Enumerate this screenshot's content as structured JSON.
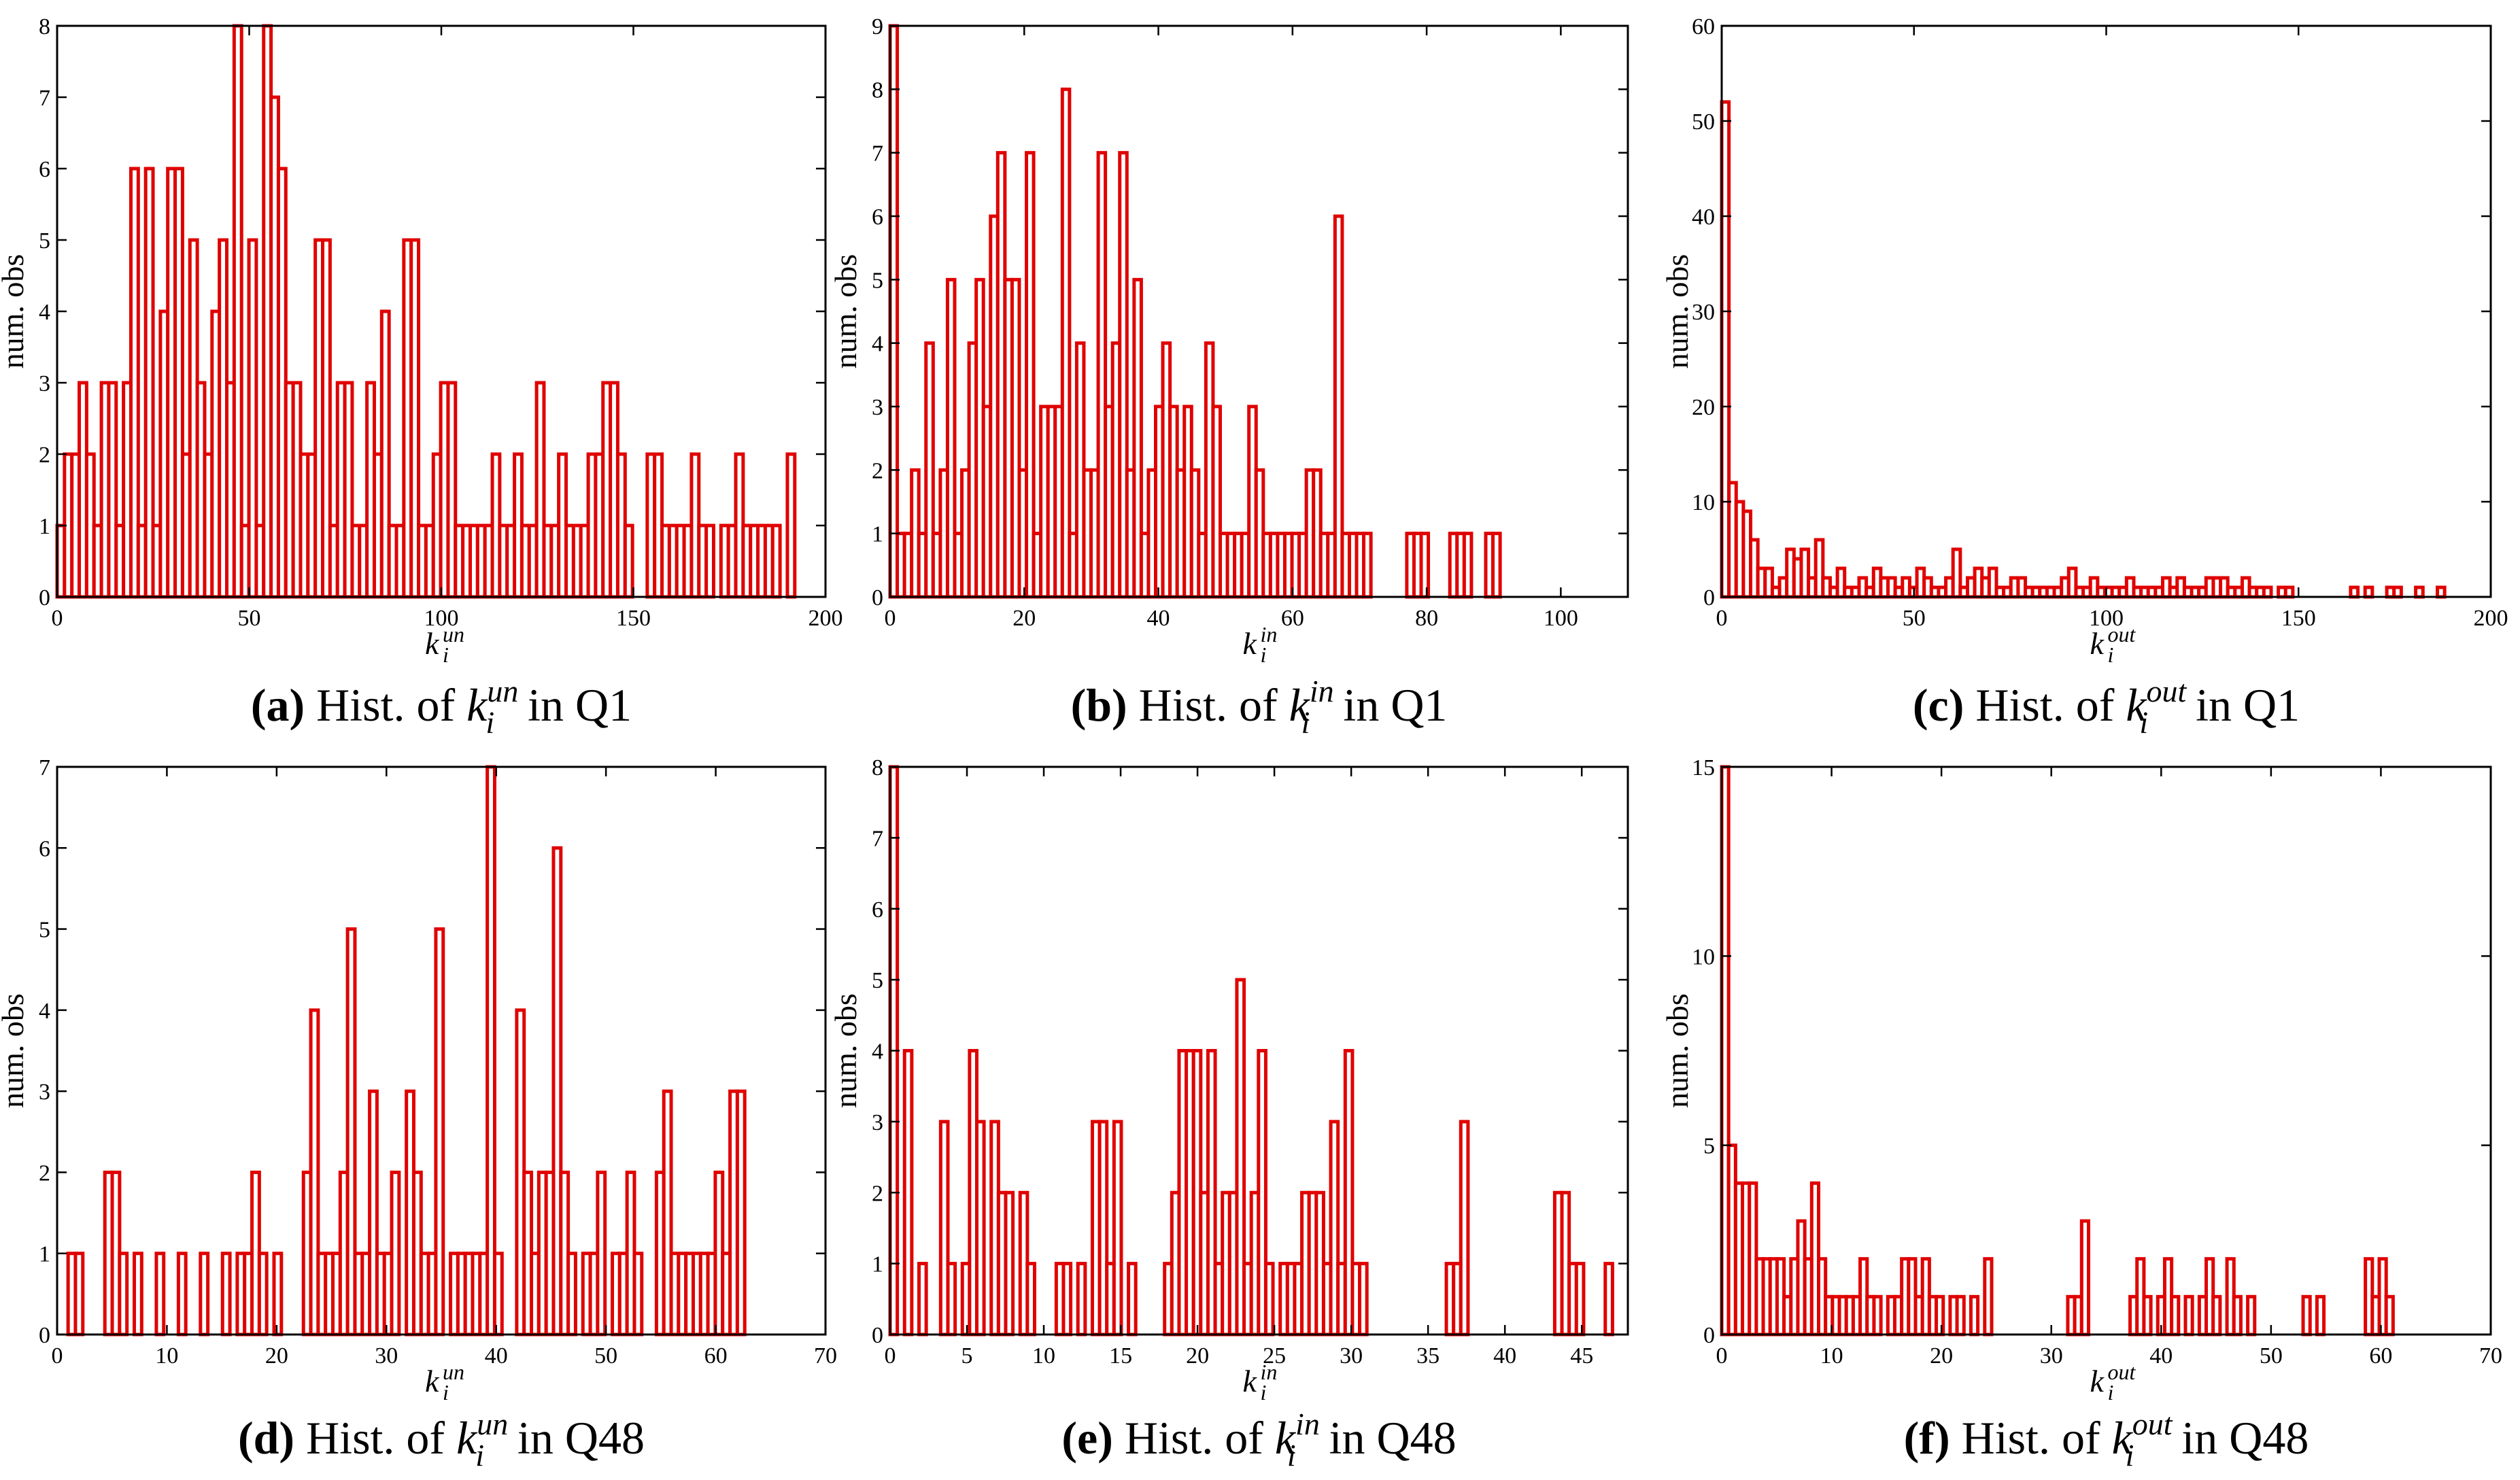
{
  "figure": {
    "colors": {
      "bar_edge": "#e00000",
      "bar_fill": "#ffffff",
      "axes": "#000000"
    }
  },
  "chart_data": [
    {
      "id": "a",
      "type": "bar",
      "caption": {
        "letter": "(a)",
        "prefix": "Hist. of",
        "k": "k",
        "sub": "i",
        "sup": "un",
        "suffix": "in Q1"
      },
      "xlabel": {
        "base": "k",
        "sub": "i",
        "sup": "un"
      },
      "ylabel": "num. obs",
      "xlim": [
        0,
        200
      ],
      "ylim": [
        0,
        8
      ],
      "xticks": [
        0,
        50,
        100,
        150,
        200
      ],
      "yticks": [
        0,
        1,
        2,
        3,
        4,
        5,
        6,
        7,
        8
      ],
      "bin_start": 0,
      "bin_width": 1.92,
      "values": [
        1,
        2,
        2,
        3,
        2,
        1,
        3,
        3,
        1,
        3,
        6,
        1,
        6,
        1,
        4,
        6,
        6,
        2,
        5,
        3,
        2,
        4,
        5,
        3,
        8,
        1,
        5,
        1,
        8,
        7,
        6,
        3,
        3,
        2,
        2,
        5,
        5,
        1,
        3,
        3,
        1,
        1,
        3,
        2,
        4,
        1,
        1,
        5,
        5,
        1,
        1,
        2,
        3,
        3,
        1,
        1,
        1,
        1,
        1,
        2,
        1,
        1,
        2,
        1,
        1,
        3,
        1,
        1,
        2,
        1,
        1,
        1,
        2,
        2,
        3,
        3,
        2,
        1,
        0,
        0,
        2,
        2,
        1,
        1,
        1,
        1,
        2,
        1,
        1,
        0,
        1,
        1,
        2,
        1,
        1,
        1,
        1,
        1,
        0,
        2
      ]
    },
    {
      "id": "b",
      "type": "bar",
      "caption": {
        "letter": "(b)",
        "prefix": "Hist. of",
        "k": "k",
        "sub": "i",
        "sup": "in",
        "suffix": "in Q1"
      },
      "xlabel": {
        "base": "k",
        "sub": "i",
        "sup": "in"
      },
      "ylabel": "num. obs",
      "xlim": [
        0,
        110
      ],
      "ylim": [
        0,
        9
      ],
      "xticks": [
        0,
        20,
        40,
        60,
        80,
        100
      ],
      "yticks": [
        0,
        1,
        2,
        3,
        4,
        5,
        6,
        7,
        8,
        9
      ],
      "bin_start": 0,
      "bin_width": 1.07,
      "values": [
        9,
        1,
        1,
        2,
        1,
        4,
        1,
        2,
        5,
        1,
        2,
        4,
        5,
        3,
        6,
        7,
        5,
        5,
        2,
        7,
        1,
        3,
        3,
        3,
        8,
        1,
        4,
        2,
        2,
        7,
        3,
        4,
        7,
        2,
        5,
        1,
        2,
        3,
        4,
        3,
        2,
        3,
        2,
        1,
        4,
        3,
        1,
        1,
        1,
        1,
        3,
        2,
        1,
        1,
        1,
        1,
        1,
        1,
        2,
        2,
        1,
        1,
        6,
        1,
        1,
        1,
        1,
        0,
        0,
        0,
        0,
        0,
        1,
        1,
        1,
        0,
        0,
        0,
        1,
        1,
        1,
        0,
        0,
        1,
        1,
        0,
        0,
        0,
        0,
        0,
        0,
        0,
        0,
        0,
        0,
        0,
        0,
        0,
        0,
        0
      ]
    },
    {
      "id": "c",
      "type": "bar",
      "caption": {
        "letter": "(c)",
        "prefix": "Hist. of",
        "k": "k",
        "sub": "i",
        "sup": "out",
        "suffix": "in Q1"
      },
      "xlabel": {
        "base": "k",
        "sub": "i",
        "sup": "out"
      },
      "ylabel": "num. obs",
      "xlim": [
        0,
        200
      ],
      "ylim": [
        0,
        60
      ],
      "xticks": [
        0,
        50,
        100,
        150,
        200
      ],
      "yticks": [
        0,
        10,
        20,
        30,
        40,
        50,
        60
      ],
      "bin_start": 0,
      "bin_width": 1.88,
      "values": [
        52,
        12,
        10,
        9,
        6,
        3,
        3,
        1,
        2,
        5,
        4,
        5,
        2,
        6,
        2,
        1,
        3,
        1,
        1,
        2,
        1,
        3,
        2,
        2,
        1,
        2,
        1,
        3,
        2,
        1,
        1,
        2,
        5,
        1,
        2,
        3,
        2,
        3,
        1,
        1,
        2,
        2,
        1,
        1,
        1,
        1,
        1,
        2,
        3,
        1,
        1,
        2,
        1,
        1,
        1,
        1,
        2,
        1,
        1,
        1,
        1,
        2,
        1,
        2,
        1,
        1,
        1,
        2,
        2,
        2,
        1,
        1,
        2,
        1,
        1,
        1,
        0,
        1,
        1,
        0,
        0,
        0,
        0,
        0,
        0,
        0,
        0,
        1,
        0,
        1,
        0,
        0,
        1,
        1,
        0,
        0,
        1,
        0,
        0,
        1
      ]
    },
    {
      "id": "d",
      "type": "bar",
      "caption": {
        "letter": "(d)",
        "prefix": "Hist. of",
        "k": "k",
        "sub": "i",
        "sup": "un",
        "suffix": "in Q48"
      },
      "xlabel": {
        "base": "k",
        "sub": "i",
        "sup": "un"
      },
      "ylabel": "num. obs",
      "xlim": [
        0,
        70
      ],
      "ylim": [
        0,
        7
      ],
      "xticks": [
        0,
        10,
        20,
        30,
        40,
        50,
        60,
        70
      ],
      "yticks": [
        0,
        1,
        2,
        3,
        4,
        5,
        6,
        7
      ],
      "bin_start": 1,
      "bin_width": 0.67,
      "values": [
        1,
        1,
        0,
        0,
        0,
        2,
        2,
        1,
        0,
        1,
        0,
        0,
        1,
        0,
        0,
        1,
        0,
        0,
        1,
        0,
        0,
        1,
        0,
        1,
        1,
        2,
        1,
        0,
        1,
        0,
        0,
        0,
        2,
        4,
        1,
        1,
        1,
        2,
        5,
        1,
        1,
        3,
        1,
        1,
        2,
        0,
        3,
        2,
        1,
        1,
        5,
        0,
        1,
        1,
        1,
        1,
        1,
        7,
        1,
        0,
        0,
        4,
        2,
        1,
        2,
        2,
        6,
        2,
        1,
        0,
        1,
        1,
        2,
        0,
        1,
        1,
        2,
        1,
        0,
        0,
        2,
        3,
        1,
        1,
        1,
        1,
        1,
        1,
        2,
        1,
        3,
        3,
        0,
        0,
        0,
        0,
        0,
        0,
        0,
        0
      ]
    },
    {
      "id": "e",
      "type": "bar",
      "caption": {
        "letter": "(e)",
        "prefix": "Hist. of",
        "k": "k",
        "sub": "i",
        "sup": "in",
        "suffix": "in Q48"
      },
      "xlabel": {
        "base": "k",
        "sub": "i",
        "sup": "in"
      },
      "ylabel": "num. obs",
      "xlim": [
        0,
        48
      ],
      "ylim": [
        0,
        8
      ],
      "xticks": [
        0,
        5,
        10,
        15,
        20,
        25,
        30,
        35,
        40,
        45
      ],
      "yticks": [
        0,
        1,
        2,
        3,
        4,
        5,
        6,
        7,
        8
      ],
      "bin_start": 0,
      "bin_width": 0.47,
      "values": [
        8,
        0,
        4,
        0,
        1,
        0,
        0,
        3,
        1,
        0,
        1,
        4,
        3,
        0,
        3,
        2,
        2,
        0,
        2,
        1,
        0,
        0,
        0,
        1,
        1,
        0,
        1,
        0,
        3,
        3,
        1,
        3,
        0,
        1,
        0,
        0,
        0,
        0,
        1,
        2,
        4,
        4,
        4,
        2,
        4,
        1,
        2,
        2,
        5,
        1,
        2,
        4,
        1,
        0,
        1,
        1,
        1,
        2,
        2,
        2,
        1,
        3,
        1,
        4,
        1,
        1,
        0,
        0,
        0,
        0,
        0,
        0,
        0,
        0,
        0,
        0,
        0,
        1,
        1,
        3,
        0,
        0,
        0,
        0,
        0,
        0,
        0,
        0,
        0,
        0,
        0,
        0,
        2,
        2,
        1,
        1,
        0,
        0,
        0,
        1
      ]
    },
    {
      "id": "f",
      "type": "bar",
      "caption": {
        "letter": "(f)",
        "prefix": "Hist. of",
        "k": "k",
        "sub": "i",
        "sup": "out",
        "suffix": "in Q48"
      },
      "xlabel": {
        "base": "k",
        "sub": "i",
        "sup": "out"
      },
      "ylabel": "num. obs",
      "xlim": [
        0,
        70
      ],
      "ylim": [
        0,
        15
      ],
      "xticks": [
        0,
        10,
        20,
        30,
        40,
        50,
        60,
        70
      ],
      "yticks": [
        0,
        5,
        10,
        15
      ],
      "bin_start": 0,
      "bin_width": 0.63,
      "values": [
        15,
        5,
        4,
        4,
        4,
        2,
        2,
        2,
        2,
        1,
        2,
        3,
        2,
        4,
        2,
        1,
        1,
        1,
        1,
        1,
        2,
        1,
        1,
        0,
        1,
        1,
        2,
        2,
        1,
        2,
        1,
        1,
        0,
        1,
        1,
        0,
        1,
        0,
        2,
        0,
        0,
        0,
        0,
        0,
        0,
        0,
        0,
        0,
        0,
        0,
        1,
        1,
        3,
        0,
        0,
        0,
        0,
        0,
        0,
        1,
        2,
        1,
        0,
        1,
        2,
        1,
        0,
        1,
        0,
        1,
        2,
        1,
        0,
        2,
        1,
        0,
        1,
        0,
        0,
        0,
        0,
        0,
        0,
        0,
        1,
        0,
        1,
        0,
        0,
        0,
        0,
        0,
        0,
        2,
        1,
        2,
        1,
        0,
        0,
        0
      ]
    }
  ]
}
